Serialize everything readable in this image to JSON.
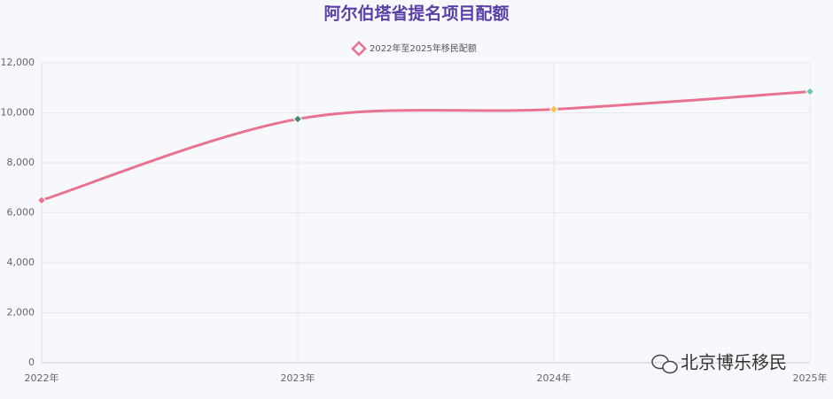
{
  "chart_data": {
    "type": "line",
    "title": "阿尔伯塔省提名项目配额",
    "categories": [
      "2022年",
      "2023年",
      "2024年",
      "2025年"
    ],
    "series": [
      {
        "name": "2022年至2025年移民配额",
        "color": "#e8738f",
        "values": [
          6500,
          9750,
          10140,
          10850
        ],
        "point_colors": [
          "#e8738f",
          "#3f8f6f",
          "#f2c14e",
          "#6cc3b9"
        ]
      }
    ],
    "ylim": [
      0,
      12000
    ],
    "yticks": [
      0,
      {
        "value": 2000,
        "label": "2,000"
      },
      {
        "value": 4000,
        "label": "4,000"
      },
      {
        "value": 6000,
        "label": "6,000"
      },
      {
        "value": 8000,
        "label": "8,000"
      },
      {
        "value": 10000,
        "label": "10,000"
      },
      {
        "value": 12000,
        "label": "12,000"
      }
    ],
    "grid": true,
    "smooth": true,
    "legend": "top",
    "watermark": "北京博乐移民"
  }
}
